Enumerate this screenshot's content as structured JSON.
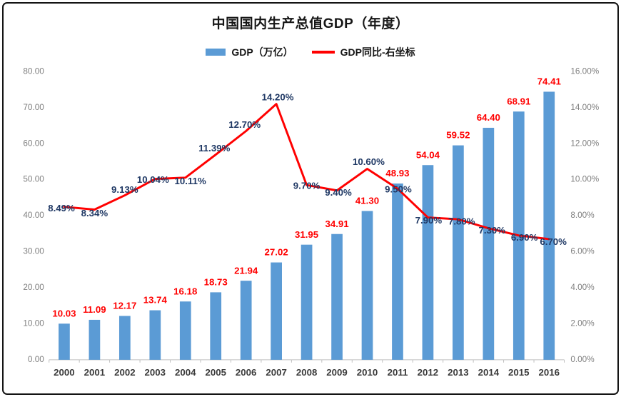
{
  "chart_data": {
    "type": "combo-bar-line",
    "title": "中国国内生产总值GDP（年度）",
    "categories": [
      "2000",
      "2001",
      "2002",
      "2003",
      "2004",
      "2005",
      "2006",
      "2007",
      "2008",
      "2009",
      "2010",
      "2011",
      "2012",
      "2013",
      "2014",
      "2015",
      "2016"
    ],
    "series": [
      {
        "name": "GDP（万亿）",
        "type": "bar",
        "axis": "left",
        "color": "#5b9bd5",
        "label_color": "#ff0000",
        "values": [
          10.03,
          11.09,
          12.17,
          13.74,
          16.18,
          18.73,
          21.94,
          27.02,
          31.95,
          34.91,
          41.3,
          48.93,
          54.04,
          59.52,
          64.4,
          68.91,
          74.41
        ]
      },
      {
        "name": "GDP同比-右坐标",
        "type": "line",
        "axis": "right",
        "color": "#ff0000",
        "label_color": "#1f3864",
        "values": [
          8.49,
          8.34,
          9.13,
          10.04,
          10.11,
          11.39,
          12.7,
          14.2,
          9.7,
          9.4,
          10.6,
          9.5,
          7.9,
          7.8,
          7.3,
          6.9,
          6.7
        ]
      }
    ],
    "left_axis": {
      "min": 0,
      "max": 80,
      "tick_labels": [
        "80.00",
        "70.00",
        "60.00",
        "50.00",
        "40.00",
        "30.00",
        "20.00",
        "10.00",
        "0.00"
      ]
    },
    "right_axis": {
      "min": 0,
      "max": 16,
      "tick_labels": [
        "16.00%",
        "14.00%",
        "12.00%",
        "10.00%",
        "8.00%",
        "6.00%",
        "4.00%",
        "2.00%",
        "0.00%"
      ]
    },
    "legend_position": "top",
    "gridlines": false,
    "axis_line_color": "#bfbfbf"
  }
}
